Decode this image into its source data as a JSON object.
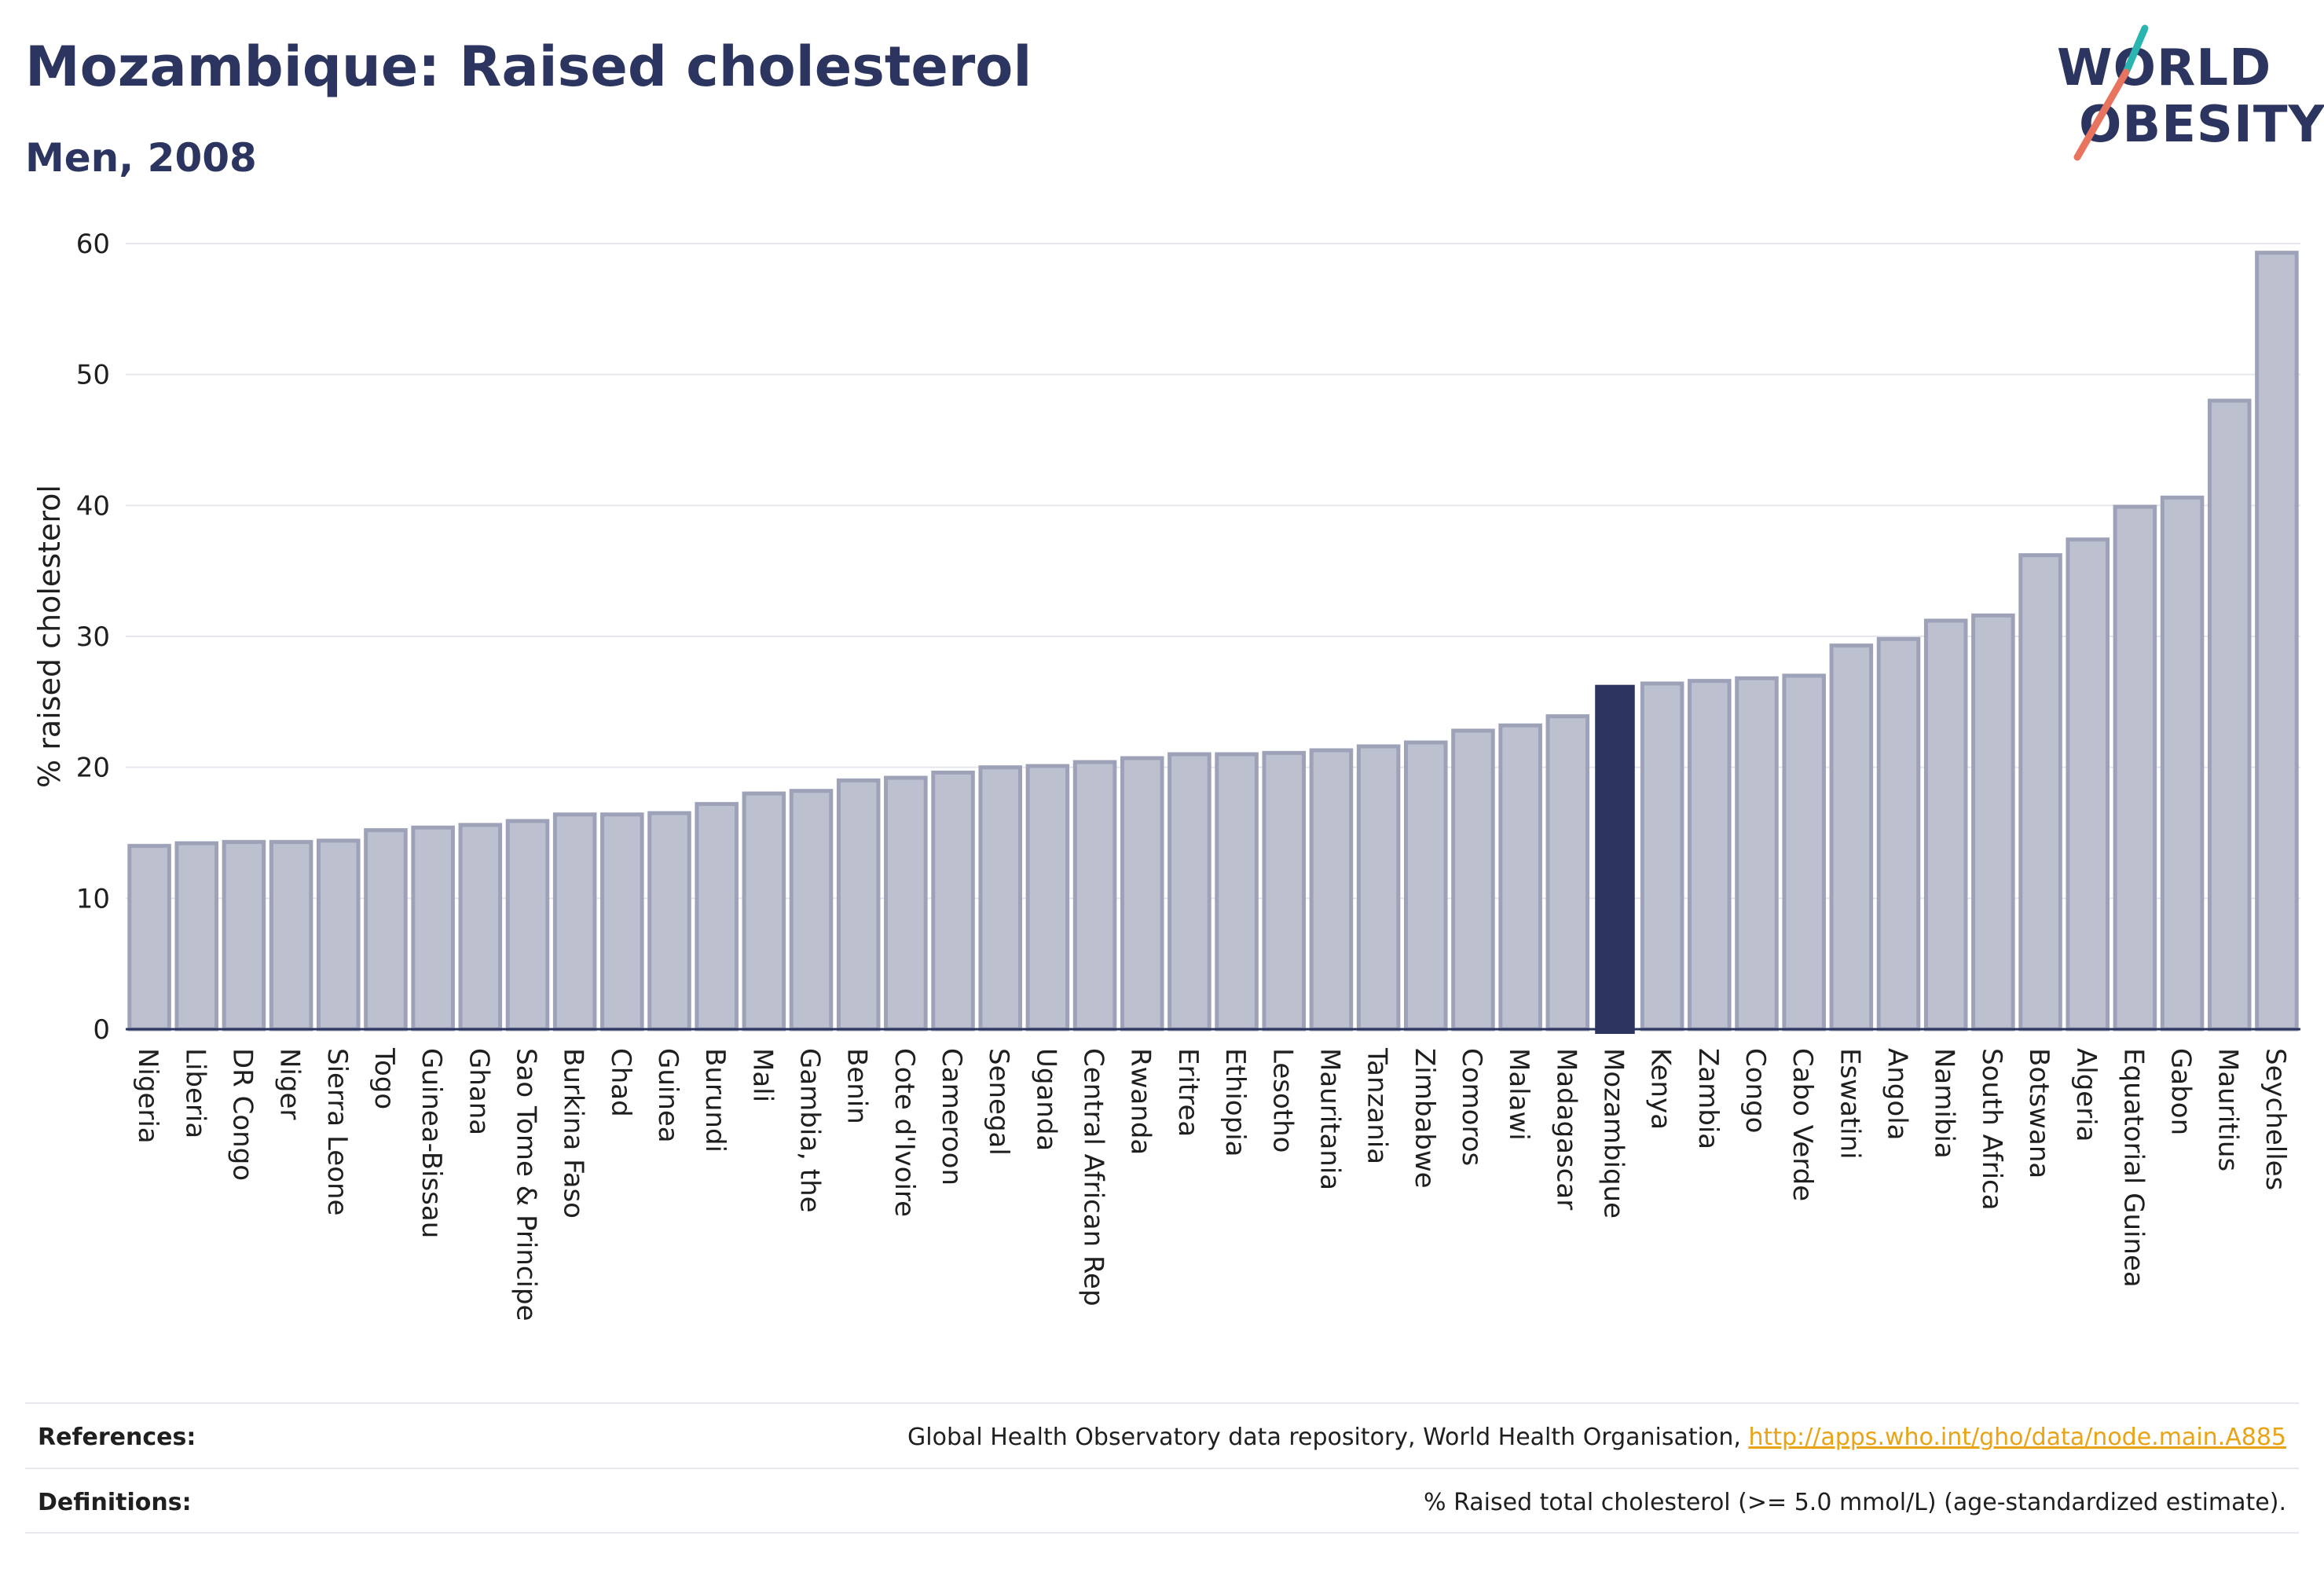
{
  "header": {
    "title": "Mozambique: Raised cholesterol",
    "subtitle": "Men, 2008"
  },
  "logo": {
    "line1": "WORLD",
    "line2": "OBESITY",
    "accent_teal": "#2bb5b0",
    "accent_coral": "#e8735e"
  },
  "colors": {
    "bar": "#bcc0cf",
    "bar_edge": "#9da2b8",
    "highlight": "#2b3560",
    "grid": "#e5e7ec",
    "axis": "#2b3560"
  },
  "chart_data": {
    "type": "bar",
    "ylabel": "% raised cholesterol",
    "ylim": [
      0,
      60
    ],
    "yticks": [
      0,
      10,
      20,
      30,
      40,
      50,
      60
    ],
    "highlight": "Mozambique",
    "categories": [
      "Nigeria",
      "Liberia",
      "DR Congo",
      "Niger",
      "Sierra Leone",
      "Togo",
      "Guinea-Bissau",
      "Ghana",
      "Sao Tome & Principe",
      "Burkina Faso",
      "Chad",
      "Guinea",
      "Burundi",
      "Mali",
      "Gambia, the",
      "Benin",
      "Cote d'Ivoire",
      "Cameroon",
      "Senegal",
      "Uganda",
      "Central African Rep",
      "Rwanda",
      "Eritrea",
      "Ethiopia",
      "Lesotho",
      "Mauritania",
      "Tanzania",
      "Zimbabwe",
      "Comoros",
      "Malawi",
      "Madagascar",
      "Mozambique",
      "Kenya",
      "Zambia",
      "Congo",
      "Cabo Verde",
      "Eswatini",
      "Angola",
      "Namibia",
      "South Africa",
      "Botswana",
      "Algeria",
      "Equatorial Guinea",
      "Gabon",
      "Mauritius",
      "Seychelles"
    ],
    "values": [
      14.0,
      14.2,
      14.3,
      14.3,
      14.4,
      15.2,
      15.4,
      15.6,
      15.9,
      16.4,
      16.4,
      16.5,
      17.2,
      18.0,
      18.2,
      19.0,
      19.2,
      19.6,
      20.0,
      20.1,
      20.4,
      20.7,
      21.0,
      21.0,
      21.1,
      21.3,
      21.6,
      21.9,
      22.8,
      23.2,
      23.9,
      26.3,
      26.4,
      26.6,
      26.8,
      27.0,
      29.3,
      29.8,
      31.2,
      31.6,
      36.2,
      37.4,
      39.9,
      40.6,
      48.0,
      59.3
    ]
  },
  "footer": {
    "references_label": "References:",
    "references_text": "Global Health Observatory data repository, World Health Organisation, ",
    "references_link": "http://apps.who.int/gho/data/node.main.A885",
    "definitions_label": "Definitions:",
    "definitions_text": "% Raised total cholesterol (>= 5.0 mmol/L) (age-standardized estimate)."
  }
}
